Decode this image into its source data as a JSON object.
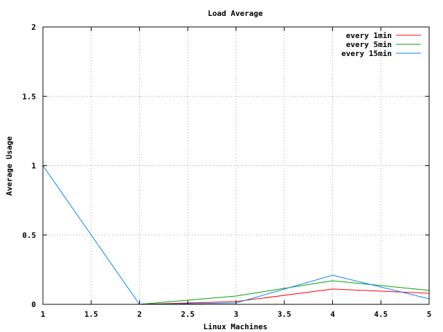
{
  "chart_data": {
    "type": "line",
    "title": "Load Average",
    "xlabel": "Linux Machines",
    "ylabel": "Average Usage",
    "xlim": [
      1,
      5
    ],
    "ylim": [
      0,
      2
    ],
    "x_ticks": [
      "1",
      "1.5",
      "2",
      "2.5",
      "3",
      "3.5",
      "4",
      "4.5",
      "5"
    ],
    "x_tick_values": [
      1,
      1.5,
      2,
      2.5,
      3,
      3.5,
      4,
      4.5,
      5
    ],
    "y_ticks": [
      "0",
      "0.5",
      "1",
      "1.5",
      "2"
    ],
    "y_tick_values": [
      0,
      0.5,
      1,
      1.5,
      2
    ],
    "grid": true,
    "legend_position": "top-right",
    "x": [
      1,
      2,
      3,
      4,
      5
    ],
    "series": [
      {
        "name": "every 1min",
        "color": "#ff0000",
        "values": [
          null,
          0.0,
          0.02,
          0.11,
          0.08
        ]
      },
      {
        "name": "every 5min",
        "color": "#00a000",
        "values": [
          null,
          0.0,
          0.06,
          0.17,
          0.1
        ]
      },
      {
        "name": "every 15min",
        "color": "#0080ff",
        "values": [
          1.0,
          0.0,
          0.01,
          0.21,
          0.04
        ]
      }
    ]
  }
}
